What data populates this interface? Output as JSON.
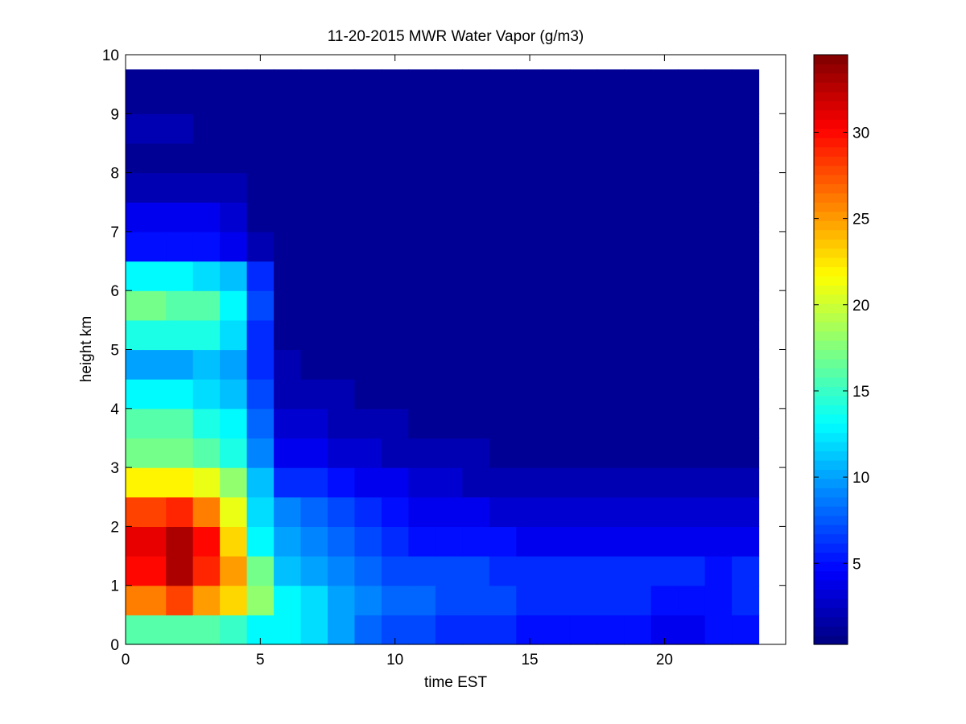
{
  "chart_data": {
    "type": "heatmap",
    "title": "11-20-2015 MWR Water Vapor (g/m3)",
    "xlabel": "time EST",
    "ylabel": "height km",
    "xlim": [
      0,
      24.5
    ],
    "ylim": [
      0,
      10
    ],
    "x_ticks": [
      "0",
      "5",
      "10",
      "15",
      "20"
    ],
    "y_ticks": [
      "0",
      "1",
      "2",
      "3",
      "4",
      "5",
      "6",
      "7",
      "8",
      "9",
      "10"
    ],
    "colorbar": {
      "range": [
        0.3,
        34.5
      ],
      "colormap": "jet",
      "ticks": [
        "5",
        "10",
        "15",
        "20",
        "25",
        "30"
      ]
    },
    "cells": {
      "x_edges": [
        0,
        1.5,
        2.5,
        3.5,
        4.5,
        5.5,
        6.5,
        7.5,
        8.5,
        9.5,
        10.5,
        11.5,
        12.5,
        13.5,
        14.5,
        15.5,
        16.5,
        17.5,
        18.5,
        19.5,
        20.5,
        21.5,
        22.5,
        23.5
      ],
      "y_edges": [
        0,
        0.5,
        1.0,
        1.5,
        2.0,
        2.5,
        3.0,
        3.5,
        4.0,
        4.5,
        5.0,
        5.5,
        6.0,
        6.5,
        7.0,
        7.5,
        8.0,
        8.5,
        9.0,
        9.75
      ],
      "values": [
        [
          16,
          16,
          16,
          15,
          13,
          13,
          12,
          10,
          8,
          7,
          7,
          6,
          6,
          6,
          5,
          5,
          5,
          5,
          5,
          4,
          4,
          5,
          5
        ],
        [
          26,
          28,
          25,
          23,
          18,
          13,
          12,
          10,
          9,
          8,
          8,
          7,
          7,
          7,
          6,
          6,
          6,
          6,
          6,
          5,
          5,
          5,
          6
        ],
        [
          30,
          33,
          29,
          25,
          17,
          11,
          10,
          9,
          8,
          7,
          7,
          7,
          7,
          6,
          6,
          6,
          6,
          6,
          6,
          6,
          6,
          5,
          6
        ],
        [
          31,
          33,
          30,
          23,
          13,
          10,
          9,
          8,
          7,
          6,
          5,
          5,
          5,
          5,
          4,
          4,
          4,
          4,
          4,
          4,
          4,
          4,
          4
        ],
        [
          28,
          29,
          26,
          21,
          12,
          9,
          8,
          7,
          6,
          5,
          4,
          4,
          4,
          3,
          3,
          3,
          3,
          3,
          3,
          3,
          3,
          3,
          3
        ],
        [
          22,
          22,
          21,
          18,
          11,
          6,
          6,
          5,
          4,
          4,
          3,
          3,
          2,
          2,
          2,
          2,
          2,
          2,
          2,
          2,
          2,
          2,
          2
        ],
        [
          17,
          17,
          16,
          14,
          9,
          4,
          4,
          3,
          3,
          2,
          2,
          2,
          2,
          1,
          1,
          1,
          1,
          1,
          1,
          1,
          1,
          1,
          1
        ],
        [
          16,
          16,
          14,
          13,
          8,
          3,
          3,
          2,
          2,
          2,
          1,
          1,
          1,
          1,
          1,
          1,
          1,
          1,
          1,
          1,
          1,
          1,
          1
        ],
        [
          13,
          13,
          12,
          11,
          7,
          2,
          2,
          2,
          1,
          1,
          1,
          1,
          1,
          1,
          1,
          1,
          1,
          1,
          1,
          1,
          1,
          1,
          1
        ],
        [
          10,
          10,
          11,
          10,
          6,
          2,
          1,
          1,
          1,
          1,
          1,
          1,
          1,
          1,
          1,
          1,
          1,
          1,
          1,
          1,
          1,
          1,
          1
        ],
        [
          14,
          14,
          14,
          12,
          6,
          1,
          1,
          1,
          1,
          1,
          1,
          1,
          1,
          1,
          1,
          1,
          1,
          1,
          1,
          1,
          1,
          1,
          1
        ],
        [
          17,
          16,
          16,
          13,
          7,
          1,
          1,
          1,
          1,
          1,
          1,
          1,
          1,
          1,
          1,
          1,
          1,
          1,
          1,
          1,
          1,
          1,
          1
        ],
        [
          13,
          13,
          12,
          11,
          6,
          1,
          1,
          1,
          1,
          1,
          1,
          1,
          1,
          1,
          1,
          1,
          1,
          1,
          1,
          1,
          1,
          1,
          1
        ],
        [
          5,
          5,
          5,
          4,
          2,
          1,
          1,
          1,
          1,
          1,
          1,
          1,
          1,
          1,
          1,
          1,
          1,
          1,
          1,
          1,
          1,
          1,
          1
        ],
        [
          4,
          4,
          4,
          3,
          1,
          1,
          1,
          1,
          1,
          1,
          1,
          1,
          1,
          1,
          1,
          1,
          1,
          1,
          1,
          1,
          1,
          1,
          1
        ],
        [
          2,
          2,
          2,
          2,
          1,
          1,
          1,
          1,
          1,
          1,
          1,
          1,
          1,
          1,
          1,
          1,
          1,
          1,
          1,
          1,
          1,
          1,
          1
        ],
        [
          1,
          1,
          1,
          1,
          1,
          1,
          1,
          1,
          1,
          1,
          1,
          1,
          1,
          1,
          1,
          1,
          1,
          1,
          1,
          1,
          1,
          1,
          1
        ],
        [
          2,
          2,
          1,
          1,
          1,
          1,
          1,
          1,
          1,
          1,
          1,
          1,
          1,
          1,
          1,
          1,
          1,
          1,
          1,
          1,
          1,
          1,
          1
        ],
        [
          1,
          1,
          1,
          1,
          1,
          1,
          1,
          1,
          1,
          1,
          1,
          1,
          1,
          1,
          1,
          1,
          1,
          1,
          1,
          1,
          1,
          1,
          1
        ]
      ]
    }
  }
}
